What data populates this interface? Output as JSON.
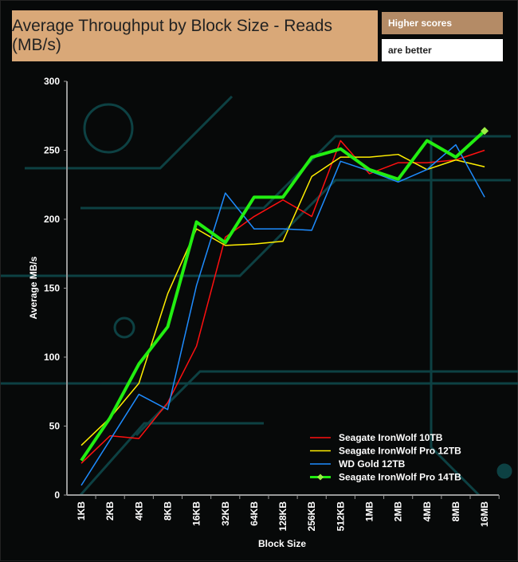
{
  "chart_data": {
    "type": "line",
    "title": "Average Throughput by Block Size - Reads (MB/s)",
    "note": [
      "Higher scores",
      "are better"
    ],
    "xlabel": "Block Size",
    "ylabel": "Average MB/s",
    "ylim": [
      0,
      300
    ],
    "yticks": [
      0,
      50,
      100,
      150,
      200,
      250,
      300
    ],
    "categories": [
      "1KB",
      "2KB",
      "4KB",
      "8KB",
      "16KB",
      "32KB",
      "64KB",
      "128KB",
      "256KB",
      "512KB",
      "1MB",
      "2MB",
      "4MB",
      "8MB",
      "16MB"
    ],
    "legend_position": "bottom-right",
    "series": [
      {
        "name": "Seagate IronWolf 10TB",
        "color": "#FF1010",
        "width": 1.5,
        "values": [
          23,
          43,
          41,
          67,
          108,
          187,
          202,
          214,
          202,
          257,
          233,
          241,
          241,
          243,
          250
        ]
      },
      {
        "name": "Seagate IronWolf Pro 12TB",
        "color": "#FFEE00",
        "width": 1.5,
        "values": [
          36,
          56,
          81,
          146,
          193,
          181,
          182,
          184,
          231,
          245,
          245,
          247,
          236,
          243,
          238
        ]
      },
      {
        "name": "WD Gold 12TB",
        "color": "#1E8CFF",
        "width": 1.5,
        "values": [
          7,
          40,
          73,
          62,
          152,
          219,
          193,
          193,
          192,
          242,
          235,
          227,
          236,
          254,
          216
        ]
      },
      {
        "name": "Seagate IronWolf  Pro 14TB",
        "color": "#22EE11",
        "width": 4,
        "marker": "diamond",
        "values": [
          25,
          56,
          95,
          122,
          198,
          183,
          216,
          216,
          245,
          251,
          236,
          229,
          257,
          245,
          264
        ]
      }
    ]
  }
}
